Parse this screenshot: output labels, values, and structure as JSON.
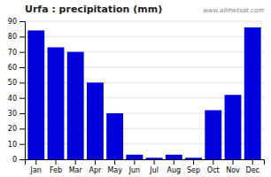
{
  "chart_data": {
    "type": "bar",
    "title": "Urfa : precipitation (mm)",
    "categories": [
      "Jan",
      "Feb",
      "Mar",
      "Apr",
      "May",
      "Jun",
      "Jul",
      "Aug",
      "Sep",
      "Oct",
      "Nov",
      "Dec"
    ],
    "values": [
      84,
      73,
      70,
      50,
      30,
      3,
      1,
      3,
      1,
      32,
      42,
      86
    ],
    "color": "#0000DD",
    "ylim": [
      0,
      90
    ],
    "yticks": [
      0,
      10,
      20,
      30,
      40,
      50,
      60,
      70,
      80,
      90
    ],
    "grid": true,
    "annotations": [
      "www.allmetsat.com"
    ]
  }
}
